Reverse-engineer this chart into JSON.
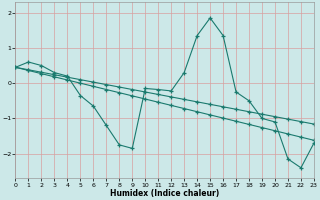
{
  "xlabel": "Humidex (Indice chaleur)",
  "bg_color": "#cce8e8",
  "grid_color": "#d8a0a0",
  "line_color": "#1a7a6e",
  "xlim": [
    0,
    23
  ],
  "ylim": [
    -2.7,
    2.3
  ],
  "yticks": [
    -2,
    -1,
    0,
    1,
    2
  ],
  "line1_y": [
    0.45,
    0.6,
    0.5,
    0.3,
    0.2,
    -0.35,
    -0.65,
    -1.2,
    -1.75,
    -1.85,
    -0.15,
    -0.18,
    -0.22,
    0.3,
    1.35,
    1.85,
    1.35,
    -0.25,
    -0.5,
    -1.0,
    -1.1,
    -2.15,
    -2.4,
    -1.7
  ],
  "line2_y": [
    0.45,
    0.38,
    0.31,
    0.24,
    0.17,
    0.1,
    0.03,
    -0.04,
    -0.11,
    -0.18,
    -0.25,
    -0.32,
    -0.39,
    -0.46,
    -0.53,
    -0.6,
    -0.67,
    -0.74,
    -0.81,
    -0.88,
    -0.95,
    -1.02,
    -1.09,
    -1.16
  ],
  "line3_y": [
    0.45,
    0.36,
    0.27,
    0.18,
    0.09,
    0.0,
    -0.09,
    -0.18,
    -0.27,
    -0.36,
    -0.45,
    -0.54,
    -0.63,
    -0.72,
    -0.81,
    -0.9,
    -0.99,
    -1.08,
    -1.17,
    -1.26,
    -1.35,
    -1.44,
    -1.53,
    -1.62
  ]
}
